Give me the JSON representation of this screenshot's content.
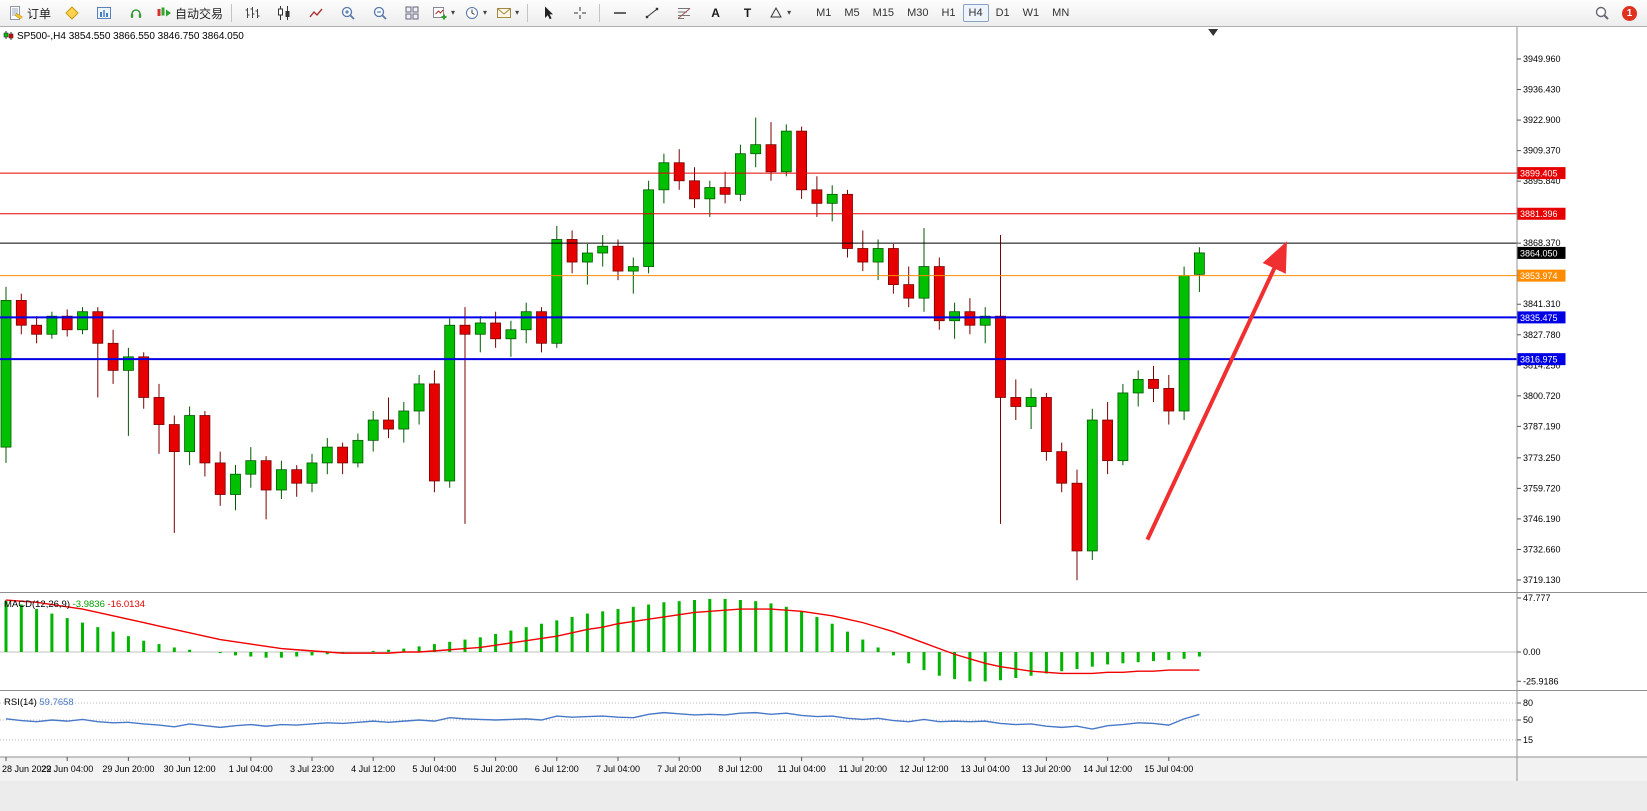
{
  "toolbar": {
    "orders": "订单",
    "auto_trading": "自动交易",
    "tool_labels": {
      "a": "A",
      "t": "T"
    },
    "timeframes": [
      "M1",
      "M5",
      "M15",
      "M30",
      "H1",
      "H4",
      "D1",
      "W1",
      "MN"
    ],
    "active_timeframe": "H4",
    "notification_badge": "1"
  },
  "chart_data": [
    {
      "type": "candlestick",
      "symbol": "SP500-",
      "timeframe": "H4",
      "title": "SP500-,H4 3854.550 3866.550 3846.750 3864.050",
      "ohlc_display": {
        "open": "3854.550",
        "high": "3866.550",
        "low": "3846.750",
        "close": "3864.050"
      },
      "ylim": [
        3713,
        3956
      ],
      "up_color": "#00c000",
      "down_color": "#e60000",
      "price_axis_labels": [
        "3949.960",
        "3936.430",
        "3922.900",
        "3909.370",
        "3895.840",
        "3868.370",
        "3841.310",
        "3827.780",
        "3814.250",
        "3800.720",
        "3787.190",
        "3773.250",
        "3759.720",
        "3746.190",
        "3732.660",
        "3719.130"
      ],
      "x_labels": [
        "28 Jun 2022",
        "29 Jun 04:00",
        "29 Jun 20:00",
        "30 Jun 12:00",
        "1 Jul 04:00",
        "3 Jul 23:00",
        "4 Jul 12:00",
        "5 Jul 04:00",
        "5 Jul 20:00",
        "6 Jul 12:00",
        "7 Jul 04:00",
        "7 Jul 20:00",
        "8 Jul 12:00",
        "11 Jul 04:00",
        "11 Jul 20:00",
        "12 Jul 12:00",
        "13 Jul 04:00",
        "13 Jul 20:00",
        "14 Jul 12:00",
        "15 Jul 04:00"
      ],
      "x_label_bars": [
        0,
        4,
        8,
        12,
        16,
        20,
        24,
        28,
        32,
        36,
        40,
        44,
        48,
        52,
        56,
        60,
        64,
        68,
        72,
        76
      ],
      "hlines": [
        {
          "price": 3899.405,
          "label": "3899.405",
          "color": "#e60000",
          "width": 1
        },
        {
          "price": 3881.396,
          "label": "3881.396",
          "color": "#e60000",
          "width": 1
        },
        {
          "price": 3868.4,
          "label": "",
          "color": "#000000",
          "width": 1
        },
        {
          "price": 3853.974,
          "label": "3853.974",
          "color": "#ff8c00",
          "width": 1
        },
        {
          "price": 3835.475,
          "label": "3835.475",
          "color": "#0000e6",
          "width": 2
        },
        {
          "price": 3816.975,
          "label": "3816.975",
          "color": "#0000e6",
          "width": 2
        }
      ],
      "current_price": {
        "value": "3864.050",
        "price": 3864.05,
        "color": "#000000"
      },
      "arrow_annotation": {
        "type": "up-arrow",
        "color": "#f03030",
        "from": {
          "bar": 74.6,
          "price": 3737
        },
        "to": {
          "bar": 83.5,
          "price": 3866
        }
      },
      "shift_marker_bar": 78.9,
      "candles": [
        [
          3778,
          3849,
          3771,
          3843
        ],
        [
          3843,
          3846,
          3828,
          3832
        ],
        [
          3832,
          3836,
          3824,
          3828
        ],
        [
          3828,
          3838,
          3826,
          3836
        ],
        [
          3836,
          3839,
          3827,
          3830
        ],
        [
          3830,
          3840,
          3828,
          3838
        ],
        [
          3838,
          3840,
          3800,
          3824
        ],
        [
          3824,
          3830,
          3806,
          3812
        ],
        [
          3812,
          3822,
          3783,
          3818
        ],
        [
          3818,
          3820,
          3795,
          3800
        ],
        [
          3800,
          3806,
          3775,
          3788
        ],
        [
          3788,
          3792,
          3740,
          3776
        ],
        [
          3776,
          3796,
          3770,
          3792
        ],
        [
          3792,
          3794,
          3765,
          3771
        ],
        [
          3771,
          3776,
          3752,
          3757
        ],
        [
          3757,
          3770,
          3750,
          3766
        ],
        [
          3766,
          3778,
          3760,
          3772
        ],
        [
          3772,
          3774,
          3746,
          3759
        ],
        [
          3759,
          3772,
          3755,
          3768
        ],
        [
          3768,
          3770,
          3756,
          3762
        ],
        [
          3762,
          3775,
          3758,
          3771
        ],
        [
          3771,
          3782,
          3766,
          3778
        ],
        [
          3778,
          3780,
          3766,
          3771
        ],
        [
          3771,
          3784,
          3769,
          3781
        ],
        [
          3781,
          3794,
          3776,
          3790
        ],
        [
          3790,
          3800,
          3782,
          3786
        ],
        [
          3786,
          3798,
          3780,
          3794
        ],
        [
          3794,
          3810,
          3788,
          3806
        ],
        [
          3806,
          3812,
          3758,
          3763
        ],
        [
          3763,
          3835,
          3760,
          3832
        ],
        [
          3832,
          3840,
          3744,
          3828
        ],
        [
          3828,
          3836,
          3820,
          3833
        ],
        [
          3833,
          3838,
          3822,
          3826
        ],
        [
          3826,
          3834,
          3818,
          3830
        ],
        [
          3830,
          3842,
          3824,
          3838
        ],
        [
          3838,
          3840,
          3820,
          3824
        ],
        [
          3824,
          3876,
          3822,
          3870
        ],
        [
          3870,
          3874,
          3855,
          3860
        ],
        [
          3860,
          3868,
          3850,
          3864
        ],
        [
          3864,
          3872,
          3858,
          3867
        ],
        [
          3867,
          3870,
          3852,
          3856
        ],
        [
          3856,
          3862,
          3846,
          3858
        ],
        [
          3858,
          3896,
          3855,
          3892
        ],
        [
          3892,
          3908,
          3886,
          3904
        ],
        [
          3904,
          3910,
          3892,
          3896
        ],
        [
          3896,
          3902,
          3884,
          3888
        ],
        [
          3888,
          3896,
          3880,
          3893
        ],
        [
          3893,
          3900,
          3886,
          3890
        ],
        [
          3890,
          3912,
          3887,
          3908
        ],
        [
          3908,
          3924,
          3902,
          3912
        ],
        [
          3912,
          3922,
          3896,
          3900
        ],
        [
          3900,
          3921,
          3898,
          3918
        ],
        [
          3918,
          3920,
          3888,
          3892
        ],
        [
          3892,
          3898,
          3880,
          3886
        ],
        [
          3886,
          3894,
          3878,
          3890
        ],
        [
          3890,
          3892,
          3862,
          3866
        ],
        [
          3866,
          3874,
          3856,
          3860
        ],
        [
          3860,
          3870,
          3852,
          3866
        ],
        [
          3866,
          3868,
          3846,
          3850
        ],
        [
          3850,
          3858,
          3840,
          3844
        ],
        [
          3844,
          3875,
          3838,
          3858
        ],
        [
          3858,
          3862,
          3830,
          3834
        ],
        [
          3834,
          3842,
          3826,
          3838
        ],
        [
          3838,
          3844,
          3828,
          3832
        ],
        [
          3832,
          3840,
          3824,
          3836
        ],
        [
          3836,
          3872,
          3744,
          3800
        ],
        [
          3800,
          3808,
          3790,
          3796
        ],
        [
          3796,
          3804,
          3786,
          3800
        ],
        [
          3800,
          3802,
          3772,
          3776
        ],
        [
          3776,
          3780,
          3758,
          3762
        ],
        [
          3762,
          3768,
          3719,
          3732
        ],
        [
          3732,
          3795,
          3728,
          3790
        ],
        [
          3790,
          3798,
          3766,
          3772
        ],
        [
          3772,
          3806,
          3770,
          3802
        ],
        [
          3802,
          3812,
          3796,
          3808
        ],
        [
          3808,
          3814,
          3798,
          3804
        ],
        [
          3804,
          3810,
          3788,
          3794
        ],
        [
          3794,
          3858,
          3790,
          3854
        ],
        [
          3854.55,
          3866.55,
          3846.75,
          3864.05
        ]
      ]
    },
    {
      "type": "bar",
      "name": "MACD(12,26,9)",
      "value_main": "-3.9836",
      "value_signal": "-16.0134",
      "histogram_color": "#00b400",
      "signal_color": "#f00000",
      "axis_labels": [
        "47.777",
        "0.00",
        "-25.9186"
      ],
      "values": [
        45,
        42,
        38,
        34,
        30,
        26,
        22,
        18,
        14,
        10,
        7,
        4,
        2,
        0,
        -1,
        -3,
        -4,
        -5,
        -5,
        -4,
        -3,
        -2,
        -1,
        0,
        1,
        2,
        3,
        5,
        7,
        9,
        11,
        13,
        16,
        19,
        22,
        25,
        28,
        31,
        34,
        36,
        38,
        40,
        42,
        44,
        45,
        46,
        47,
        47,
        46,
        45,
        43,
        40,
        36,
        31,
        25,
        18,
        11,
        4,
        -3,
        -10,
        -16,
        -21,
        -24,
        -26,
        -26,
        -25,
        -23,
        -21,
        -19,
        -17,
        -15,
        -13,
        -11,
        -10,
        -9,
        -8,
        -7,
        -6,
        -4
      ],
      "signal": [
        46,
        45,
        44,
        42,
        40,
        38,
        35,
        32,
        29,
        26,
        23,
        20,
        17,
        14,
        11,
        9,
        7,
        5,
        3,
        2,
        1,
        0,
        -1,
        -1,
        -1,
        -1,
        0,
        0,
        1,
        2,
        3,
        4,
        6,
        8,
        10,
        12,
        14,
        17,
        20,
        22,
        25,
        27,
        29,
        31,
        33,
        35,
        36,
        37,
        38,
        38,
        38,
        37,
        36,
        34,
        32,
        29,
        26,
        22,
        18,
        13,
        8,
        3,
        -2,
        -6,
        -10,
        -13,
        -15,
        -17,
        -18,
        -19,
        -19,
        -19,
        -18,
        -18,
        -17,
        -17,
        -16,
        -16,
        -16
      ]
    },
    {
      "type": "line",
      "name": "RSI(14)",
      "value": "59.7658",
      "line_color": "#4878c8",
      "axis_labels": [
        "80",
        "50",
        "15"
      ],
      "values": [
        52,
        49,
        47,
        50,
        48,
        51,
        47,
        45,
        46,
        43,
        41,
        38,
        43,
        40,
        37,
        40,
        42,
        39,
        42,
        41,
        43,
        45,
        44,
        46,
        48,
        46,
        48,
        50,
        48,
        54,
        52,
        51,
        50,
        51,
        52,
        50,
        57,
        55,
        56,
        57,
        55,
        54,
        60,
        63,
        61,
        59,
        60,
        59,
        62,
        63,
        60,
        62,
        58,
        56,
        57,
        53,
        51,
        53,
        49,
        47,
        51,
        47,
        48,
        47,
        48,
        44,
        42,
        43,
        39,
        37,
        39,
        34,
        40,
        42,
        45,
        44,
        41,
        52,
        59.77
      ]
    }
  ]
}
